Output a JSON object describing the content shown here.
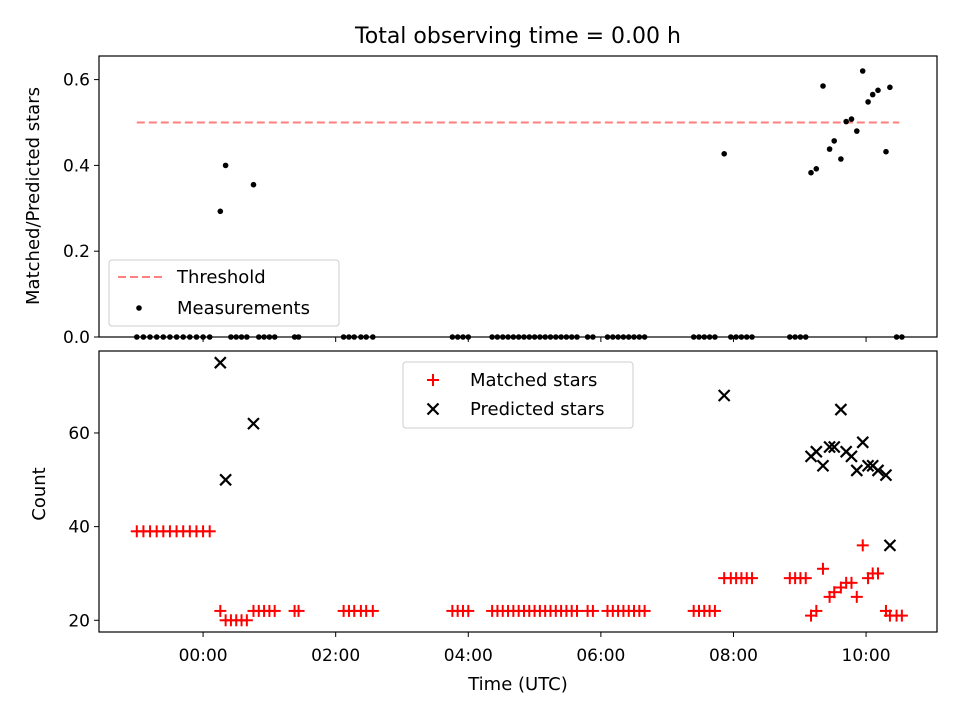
{
  "title": "Total observing time = 0.00 h",
  "chart_data": [
    {
      "type": "scatter",
      "ylabel": "Matched/Predicted stars",
      "ylim": [
        0,
        0.655
      ],
      "yticks": [
        0.0,
        0.2,
        0.4,
        0.6
      ],
      "ytick_labels": [
        "0.0",
        "0.2",
        "0.4",
        "0.6"
      ],
      "xlim": [
        -1.57,
        11.07
      ],
      "legend_position": "lower-left",
      "threshold": {
        "name": "Threshold",
        "value": 0.5,
        "x_start": -1.0,
        "x_end": 10.5,
        "color": "#ff7f7f",
        "style": "dashed"
      },
      "series": [
        {
          "name": "Measurements",
          "marker": "dot",
          "color": "#000000",
          "x": [
            -1.0,
            -0.9,
            -0.8,
            -0.7,
            -0.6,
            -0.5,
            -0.4,
            -0.3,
            -0.2,
            -0.1,
            0.0,
            0.1,
            0.26,
            0.34,
            0.42,
            0.5,
            0.58,
            0.66,
            0.76,
            0.84,
            0.92,
            1.0,
            1.08,
            1.38,
            1.44,
            2.12,
            2.2,
            2.28,
            2.38,
            2.46,
            2.56,
            3.76,
            3.84,
            3.92,
            4.0,
            4.36,
            4.44,
            4.52,
            4.6,
            4.68,
            4.76,
            4.84,
            4.92,
            5.0,
            5.08,
            5.16,
            5.24,
            5.32,
            5.4,
            5.48,
            5.56,
            5.64,
            5.8,
            5.88,
            6.1,
            6.18,
            6.26,
            6.34,
            6.42,
            6.5,
            6.58,
            6.66,
            7.4,
            7.48,
            7.56,
            7.64,
            7.72,
            7.86,
            7.96,
            8.04,
            8.12,
            8.2,
            8.28,
            8.85,
            8.93,
            9.01,
            9.09,
            9.17,
            9.25,
            9.35,
            9.45,
            9.52,
            9.62,
            9.7,
            9.78,
            9.86,
            9.95,
            10.03,
            10.1,
            10.18,
            10.3,
            10.36,
            10.46,
            10.54
          ],
          "y": [
            0,
            0,
            0,
            0,
            0,
            0,
            0,
            0,
            0,
            0,
            0,
            0,
            0.293,
            0.4,
            0,
            0,
            0,
            0,
            0.355,
            0,
            0,
            0,
            0,
            0,
            0,
            0,
            0,
            0,
            0,
            0,
            0,
            0,
            0,
            0,
            0,
            0,
            0,
            0,
            0,
            0,
            0,
            0,
            0,
            0,
            0,
            0,
            0,
            0,
            0,
            0,
            0,
            0,
            0,
            0,
            0,
            0,
            0,
            0,
            0,
            0,
            0,
            0,
            0,
            0,
            0,
            0,
            0,
            0.427,
            0,
            0,
            0,
            0,
            0,
            0,
            0,
            0,
            0,
            0.383,
            0.392,
            0.585,
            0.438,
            0.457,
            0.415,
            0.502,
            0.508,
            0.48,
            0.62,
            0.548,
            0.565,
            0.575,
            0.432,
            0.582,
            0,
            0
          ]
        }
      ]
    },
    {
      "type": "scatter",
      "xlabel": "Time (UTC)",
      "ylabel": "Count",
      "ylim": [
        17.5,
        77.5
      ],
      "yticks": [
        20,
        40,
        60
      ],
      "ytick_labels": [
        "20",
        "40",
        "60"
      ],
      "xlim": [
        -1.57,
        11.07
      ],
      "xticks": [
        0,
        2,
        4,
        6,
        8,
        10
      ],
      "xtick_labels": [
        "00:00",
        "02:00",
        "04:00",
        "06:00",
        "08:00",
        "10:00"
      ],
      "legend_position": "top-center",
      "series": [
        {
          "name": "Matched stars",
          "marker": "plus",
          "color": "#ff0000",
          "x": [
            -1.0,
            -0.9,
            -0.8,
            -0.7,
            -0.6,
            -0.5,
            -0.4,
            -0.3,
            -0.2,
            -0.1,
            0.0,
            0.1,
            0.26,
            0.34,
            0.42,
            0.5,
            0.58,
            0.66,
            0.76,
            0.84,
            0.92,
            1.0,
            1.08,
            1.38,
            1.44,
            2.12,
            2.2,
            2.28,
            2.38,
            2.46,
            2.56,
            3.76,
            3.84,
            3.92,
            4.0,
            4.36,
            4.44,
            4.52,
            4.6,
            4.68,
            4.76,
            4.84,
            4.92,
            5.0,
            5.08,
            5.16,
            5.24,
            5.32,
            5.4,
            5.48,
            5.56,
            5.64,
            5.8,
            5.88,
            6.1,
            6.18,
            6.26,
            6.34,
            6.42,
            6.5,
            6.58,
            6.66,
            7.4,
            7.48,
            7.56,
            7.64,
            7.72,
            7.86,
            7.96,
            8.04,
            8.12,
            8.2,
            8.28,
            8.85,
            8.93,
            9.01,
            9.09,
            9.17,
            9.25,
            9.35,
            9.45,
            9.52,
            9.62,
            9.7,
            9.78,
            9.86,
            9.95,
            10.03,
            10.1,
            10.18,
            10.3,
            10.36,
            10.46,
            10.54
          ],
          "y": [
            39,
            39,
            39,
            39,
            39,
            39,
            39,
            39,
            39,
            39,
            39,
            39,
            22,
            20,
            20,
            20,
            20,
            20,
            22,
            22,
            22,
            22,
            22,
            22,
            22,
            22,
            22,
            22,
            22,
            22,
            22,
            22,
            22,
            22,
            22,
            22,
            22,
            22,
            22,
            22,
            22,
            22,
            22,
            22,
            22,
            22,
            22,
            22,
            22,
            22,
            22,
            22,
            22,
            22,
            22,
            22,
            22,
            22,
            22,
            22,
            22,
            22,
            22,
            22,
            22,
            22,
            22,
            29,
            29,
            29,
            29,
            29,
            29,
            29,
            29,
            29,
            29,
            21,
            22,
            31,
            25,
            26,
            27,
            28,
            28,
            25,
            36,
            29,
            30,
            30,
            22,
            21,
            21,
            21
          ]
        },
        {
          "name": "Predicted stars",
          "marker": "x",
          "color": "#000000",
          "x": [
            0.26,
            0.34,
            0.76,
            7.86,
            9.17,
            9.25,
            9.35,
            9.45,
            9.52,
            9.62,
            9.7,
            9.78,
            9.86,
            9.95,
            10.03,
            10.1,
            10.18,
            10.3,
            10.36
          ],
          "y": [
            75,
            50,
            62,
            68,
            55,
            56,
            53,
            57,
            57,
            65,
            56,
            55,
            52,
            58,
            53,
            53,
            52,
            51,
            36
          ]
        }
      ]
    }
  ]
}
